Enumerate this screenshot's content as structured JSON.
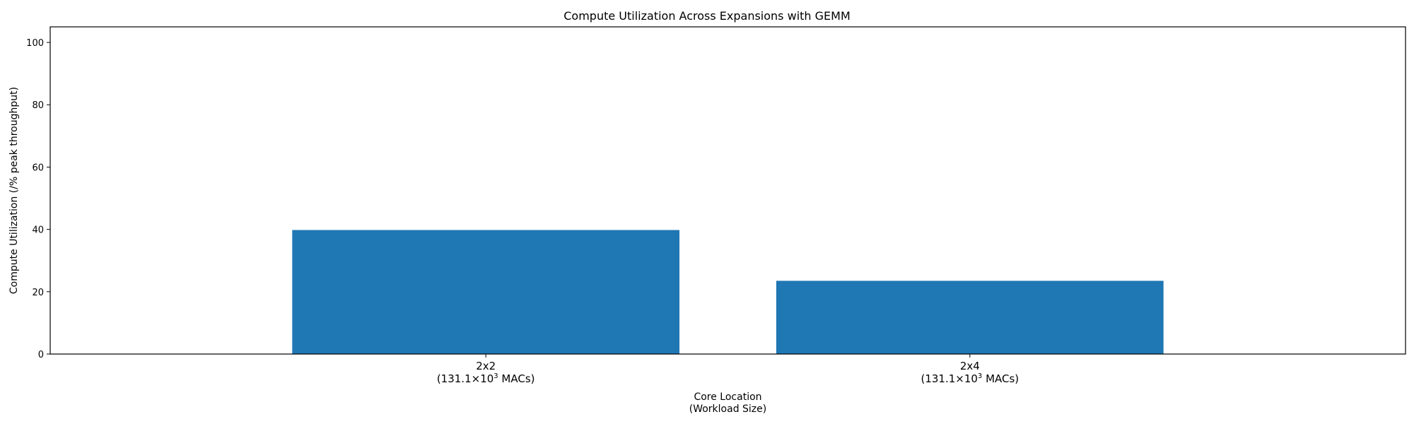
{
  "chart_data": {
    "type": "bar",
    "title": "Compute Utilization Across Expansions with GEMM",
    "xlabel_lines": [
      "Core Location",
      "(Workload Size)"
    ],
    "ylabel": "Compute Utilization (/% peak throughput)",
    "categories": [
      {
        "name": "2x2",
        "workload_prefix": "(131.1×10",
        "workload_exp": "3",
        "workload_suffix": " MACs)"
      },
      {
        "name": "2x4",
        "workload_prefix": "(131.1×10",
        "workload_exp": "3",
        "workload_suffix": " MACs)"
      }
    ],
    "values": [
      39.8,
      23.5
    ],
    "ylim": [
      0,
      105
    ],
    "yticks": [
      0,
      20,
      40,
      60,
      80,
      100
    ],
    "bar_color": "#1f77b4",
    "grid": false,
    "legend": "none"
  }
}
